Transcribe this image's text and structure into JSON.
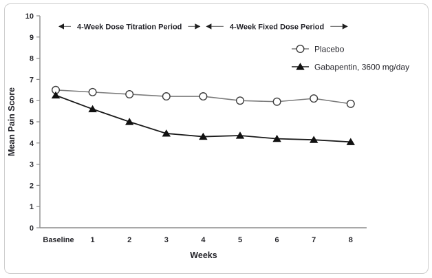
{
  "figure": {
    "background": "#ffffff",
    "border_color": "#cdcdcd",
    "axis_color": "#8c8c8c",
    "text_color": "#26262b",
    "arrow_line_color": "#7d7d7d",
    "arrow_head_color": "#1f1f1f"
  },
  "chart_data": {
    "type": "line",
    "title": "",
    "xlabel": "Weeks",
    "ylabel": "Mean Pain Score",
    "categories": [
      "Baseline",
      "1",
      "2",
      "3",
      "4",
      "5",
      "6",
      "7",
      "8"
    ],
    "ylim": [
      0,
      10
    ],
    "ytick_interval": 1,
    "yticks": [
      "0",
      "1",
      "2",
      "3",
      "4",
      "5",
      "6",
      "7",
      "8",
      "9",
      "10"
    ],
    "grid": false,
    "legend_position": "top-right-inside",
    "series": [
      {
        "name": "Placebo",
        "marker": "open-circle",
        "line_color": "#7b7b7b",
        "marker_fill": "#ffffff",
        "marker_stroke": "#3c3c3c",
        "values": [
          6.5,
          6.4,
          6.3,
          6.2,
          6.2,
          6.0,
          5.95,
          6.1,
          5.85
        ]
      },
      {
        "name": "Gabapentin, 3600 mg/day",
        "marker": "filled-triangle",
        "line_color": "#1a1a1a",
        "marker_fill": "#111111",
        "marker_stroke": "#111111",
        "values": [
          6.25,
          5.6,
          5.0,
          4.45,
          4.3,
          4.35,
          4.2,
          4.15,
          4.05
        ]
      }
    ],
    "annotations": [
      {
        "label": "4-Week Dose Titration Period",
        "x_start": "Baseline",
        "x_end": "4",
        "y": 9.5,
        "arrow": "double-headed"
      },
      {
        "label": "4-Week Fixed Dose Period",
        "x_start": "4",
        "x_end": "8",
        "y": 9.5,
        "arrow": "double-headed"
      }
    ]
  }
}
